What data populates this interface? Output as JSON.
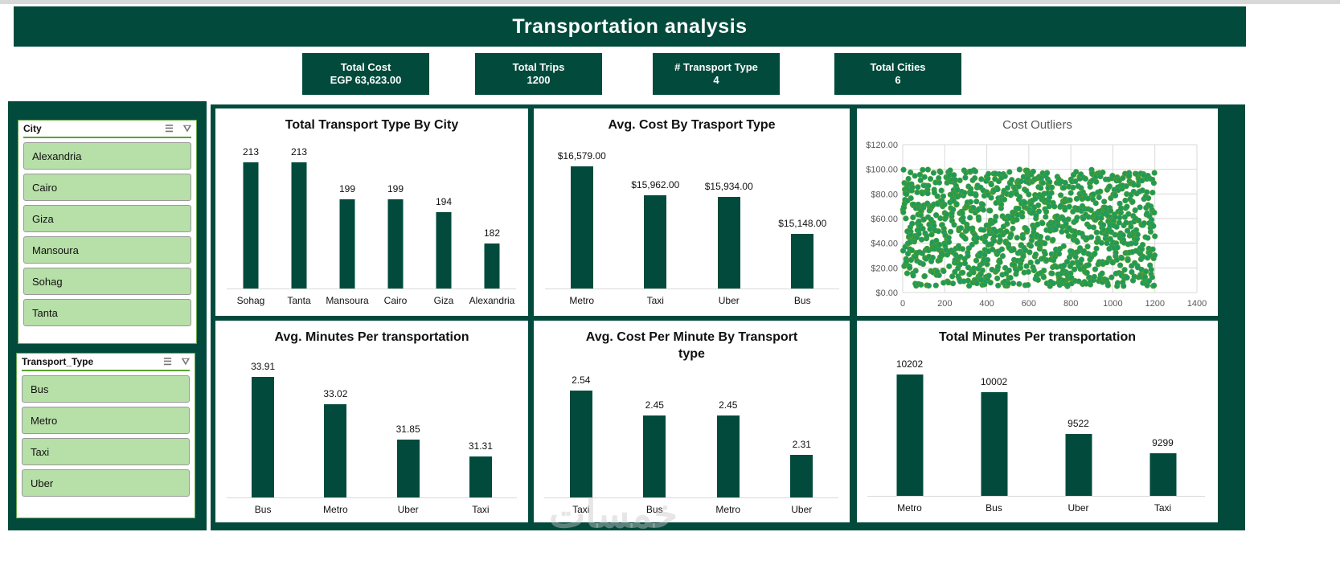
{
  "header": {
    "title": "Transportation analysis"
  },
  "kpis": [
    {
      "label": "Total Cost",
      "value": "EGP 63,623.00"
    },
    {
      "label": "Total Trips",
      "value": "1200"
    },
    {
      "label": "# Transport Type",
      "value": "4"
    },
    {
      "label": "Total Cities",
      "value": "6"
    }
  ],
  "slicers": {
    "city": {
      "title": "City",
      "items": [
        "Alexandria",
        "Cairo",
        "Giza",
        "Mansoura",
        "Sohag",
        "Tanta"
      ]
    },
    "transport": {
      "title": "Transport_Type",
      "items": [
        "Bus",
        "Metro",
        "Taxi",
        "Uber"
      ]
    },
    "multi_select_icon": "multi-select-icon",
    "clear_filter_icon": "clear-filter-icon"
  },
  "watermark": "خمسات",
  "colors": {
    "brand": "#024b3c",
    "slicer_item": "#b7dfa8",
    "scatter_point": "#1e9a5a"
  },
  "chart_data": [
    {
      "type": "bar",
      "title": "Total Transport Type By City",
      "categories": [
        "Sohag",
        "Tanta",
        "Mansoura",
        "Cairo",
        "Giza",
        "Alexandria"
      ],
      "values": [
        213,
        213,
        199,
        199,
        194,
        182
      ],
      "labels": [
        "213",
        "213",
        "199",
        "199",
        "194",
        "182"
      ],
      "ylim": [
        165,
        220
      ]
    },
    {
      "type": "bar",
      "title": "Avg. Cost By Trasport Type",
      "categories": [
        "Metro",
        "Taxi",
        "Uber",
        "Bus"
      ],
      "values": [
        16579,
        15962,
        15934,
        15148
      ],
      "labels": [
        "$16,579.00",
        "$15,962.00",
        "$15,934.00",
        "$15,148.00"
      ],
      "ylim": [
        13990,
        17056
      ]
    },
    {
      "type": "scatter",
      "title": "Cost Outliers",
      "n_points": 1200,
      "x_range": [
        1,
        1200
      ],
      "y_range": [
        5,
        100
      ],
      "xlim": [
        0,
        1400
      ],
      "ylim": [
        0,
        120
      ],
      "xticks": [
        "0",
        "200",
        "400",
        "600",
        "800",
        "1000",
        "1200",
        "1400"
      ],
      "yticks": [
        "$0.00",
        "$20.00",
        "$40.00",
        "$60.00",
        "$80.00",
        "$100.00",
        "$120.00"
      ],
      "grid": true
    },
    {
      "type": "bar",
      "title": "Avg. Minutes Per transportation",
      "categories": [
        "Bus",
        "Metro",
        "Uber",
        "Taxi"
      ],
      "values": [
        33.91,
        33.02,
        31.85,
        31.31
      ],
      "labels": [
        "33.91",
        "33.02",
        "31.85",
        "31.31"
      ],
      "ylim": [
        29.97,
        34.7
      ]
    },
    {
      "type": "bar",
      "title": "Avg. Cost Per Minute By Transport type",
      "categories": [
        "Taxi",
        "Bus",
        "Metro",
        "Uber"
      ],
      "values": [
        2.54,
        2.45,
        2.45,
        2.31
      ],
      "labels": [
        "2.54",
        "2.45",
        "2.45",
        "2.31"
      ],
      "ylim": [
        2.158,
        2.675
      ]
    },
    {
      "type": "bar",
      "title": "Total Minutes Per transportation",
      "categories": [
        "Metro",
        "Bus",
        "Uber",
        "Taxi"
      ],
      "values": [
        10202,
        10002,
        9522,
        9299
      ],
      "labels": [
        "10202",
        "10002",
        "9522",
        "9299"
      ],
      "ylim": [
        8811,
        10469
      ]
    }
  ]
}
